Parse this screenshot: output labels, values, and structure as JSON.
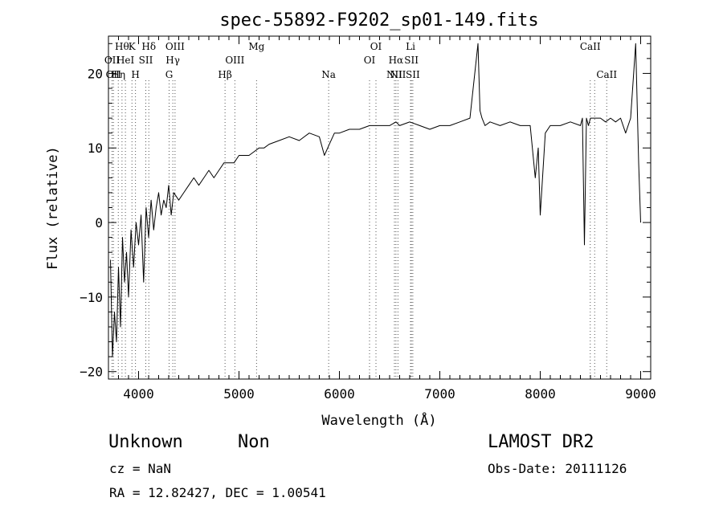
{
  "chart_data": {
    "type": "line",
    "title": "spec-55892-F9202_sp01-149.fits",
    "xlabel": "Wavelength (Å)",
    "ylabel": "Flux (relative)",
    "xlim": [
      3700,
      9100
    ],
    "ylim": [
      -21,
      25
    ],
    "x_ticks": [
      4000,
      5000,
      6000,
      7000,
      8000,
      9000
    ],
    "y_ticks": [
      -20,
      -10,
      0,
      10,
      20
    ],
    "grid": false,
    "series": [
      {
        "x": [
          3720,
          3740,
          3760,
          3780,
          3800,
          3820,
          3840,
          3860,
          3880,
          3900,
          3925,
          3950,
          3975,
          4000,
          4025,
          4050,
          4075,
          4100,
          4125,
          4150,
          4175,
          4200,
          4225,
          4250,
          4275,
          4300,
          4325,
          4350,
          4400,
          4450,
          4500,
          4550,
          4600,
          4650,
          4700,
          4750,
          4800,
          4850,
          4900,
          4950,
          5000,
          5050,
          5100,
          5150,
          5200,
          5250,
          5300,
          5400,
          5500,
          5600,
          5700,
          5800,
          5850,
          5900,
          5950,
          6000,
          6100,
          6200,
          6300,
          6400,
          6500,
          6563,
          6600,
          6700,
          6800,
          6900,
          7000,
          7100,
          7200,
          7300,
          7380,
          7400,
          7420,
          7450,
          7500,
          7600,
          7700,
          7800,
          7900,
          7950,
          7980,
          8000,
          8050,
          8100,
          8200,
          8300,
          8400,
          8420,
          8440,
          8460,
          8480,
          8500,
          8550,
          8600,
          8650,
          8700,
          8750,
          8800,
          8850,
          8900,
          8950,
          8980,
          9000
        ],
        "y": [
          -5,
          -18,
          -12,
          -16,
          -6,
          -14,
          -2,
          -8,
          -4,
          -10,
          -1,
          -6,
          0,
          -3,
          1,
          -8,
          2,
          -2,
          3,
          -1,
          2,
          4,
          1,
          3,
          2,
          5,
          1,
          4,
          3,
          4,
          5,
          6,
          5,
          6,
          7,
          6,
          7,
          8,
          8,
          8,
          9,
          9,
          9,
          9.5,
          10,
          10,
          10.5,
          11,
          11.5,
          11,
          12,
          11.5,
          9,
          10.5,
          12,
          12,
          12.5,
          12.5,
          13,
          13,
          13,
          13.5,
          13,
          13.5,
          13,
          12.5,
          13,
          13,
          13.5,
          14,
          24,
          15,
          14,
          13,
          13.5,
          13,
          13.5,
          13,
          13,
          6,
          10,
          1,
          12,
          13,
          13,
          13.5,
          13,
          14,
          -3,
          14,
          13,
          14,
          14,
          14,
          13.5,
          14,
          13.5,
          14,
          12,
          14,
          24,
          8,
          0
        ]
      }
    ],
    "lines": [
      {
        "x": 3736,
        "row": 1,
        "label": "OII"
      },
      {
        "x": 3750,
        "row": 2,
        "label": "OII"
      },
      {
        "x": 3798,
        "row": 2,
        "label": "Hη"
      },
      {
        "x": 3835,
        "row": 0,
        "label": "Hθ"
      },
      {
        "x": 3869,
        "row": 1,
        "label": "HeI"
      },
      {
        "x": 3934,
        "row": 0,
        "label": "K"
      },
      {
        "x": 3969,
        "row": 2,
        "label": "H"
      },
      {
        "x": 4072,
        "row": 1,
        "label": "SII"
      },
      {
        "x": 4102,
        "row": 0,
        "label": "Hδ"
      },
      {
        "x": 4304,
        "row": 2,
        "label": "G"
      },
      {
        "x": 4341,
        "row": 1,
        "label": "Hγ"
      },
      {
        "x": 4363,
        "row": 0,
        "label": "OIII"
      },
      {
        "x": 4861,
        "row": 2,
        "label": "Hβ"
      },
      {
        "x": 4959,
        "row": 1,
        "label": "OIII"
      },
      {
        "x": 5175,
        "row": 0,
        "label": "Mg"
      },
      {
        "x": 5893,
        "row": 2,
        "label": "Na"
      },
      {
        "x": 6300,
        "row": 1,
        "label": "OI"
      },
      {
        "x": 6364,
        "row": 0,
        "label": "OI"
      },
      {
        "x": 6548,
        "row": 2,
        "label": "NII"
      },
      {
        "x": 6563,
        "row": 1,
        "label": "Hα"
      },
      {
        "x": 6583,
        "row": 2,
        "label": "NII"
      },
      {
        "x": 6708,
        "row": 0,
        "label": "Li"
      },
      {
        "x": 6717,
        "row": 1,
        "label": "SII"
      },
      {
        "x": 6731,
        "row": 2,
        "label": "SII"
      },
      {
        "x": 8498,
        "row": 0,
        "label": "CaII"
      },
      {
        "x": 8542,
        "row": 0,
        "label": ""
      },
      {
        "x": 8662,
        "row": 2,
        "label": "CaII"
      }
    ]
  },
  "info": {
    "class": "Unknown",
    "subclass": "Non",
    "survey": "LAMOST DR2",
    "cz": "cz = NaN",
    "obs_date": "Obs-Date: 20111126",
    "radec": "RA =   12.82427, DEC =    1.00541"
  }
}
